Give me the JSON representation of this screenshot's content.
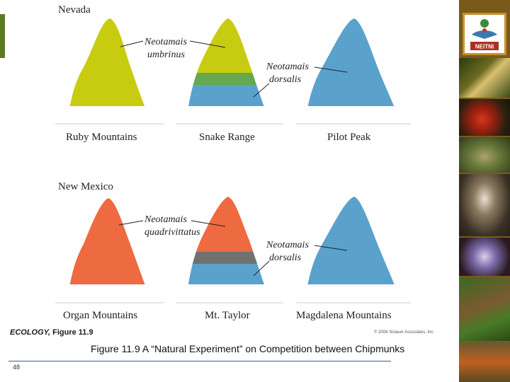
{
  "states": {
    "nevada": "Nevada",
    "new_mexico": "New Mexico"
  },
  "mountains": {
    "ruby": "Ruby Mountains",
    "snake": "Snake Range",
    "pilot": "Pilot Peak",
    "organ": "Organ Mountains",
    "taylor": "Mt. Taylor",
    "magdalena": "Magdalena Mountains"
  },
  "species": {
    "genus": "Neotamais",
    "umbrinus": "umbrinus",
    "dorsalis": "dorsalis",
    "quadrivittatus": "quadrivittatus"
  },
  "colors": {
    "umbrinus": "#c8cc10",
    "dorsalis": "#5aa2cc",
    "quadrivittatus": "#ee6a40",
    "overlap_nevada": "#64a850",
    "overlap_newmexico": "#717171",
    "base": "#ffffff"
  },
  "credit": {
    "book": "ECOLOGY,",
    "figure": " Figure 11.9",
    "copyright": "© 2008 Sinauer Associates, Inc."
  },
  "caption": "Figure 11.9  A “Natural Experiment” on Competition between Chipmunks",
  "page_number": "48",
  "sidebar": {
    "logo_text": "NEITNI"
  }
}
